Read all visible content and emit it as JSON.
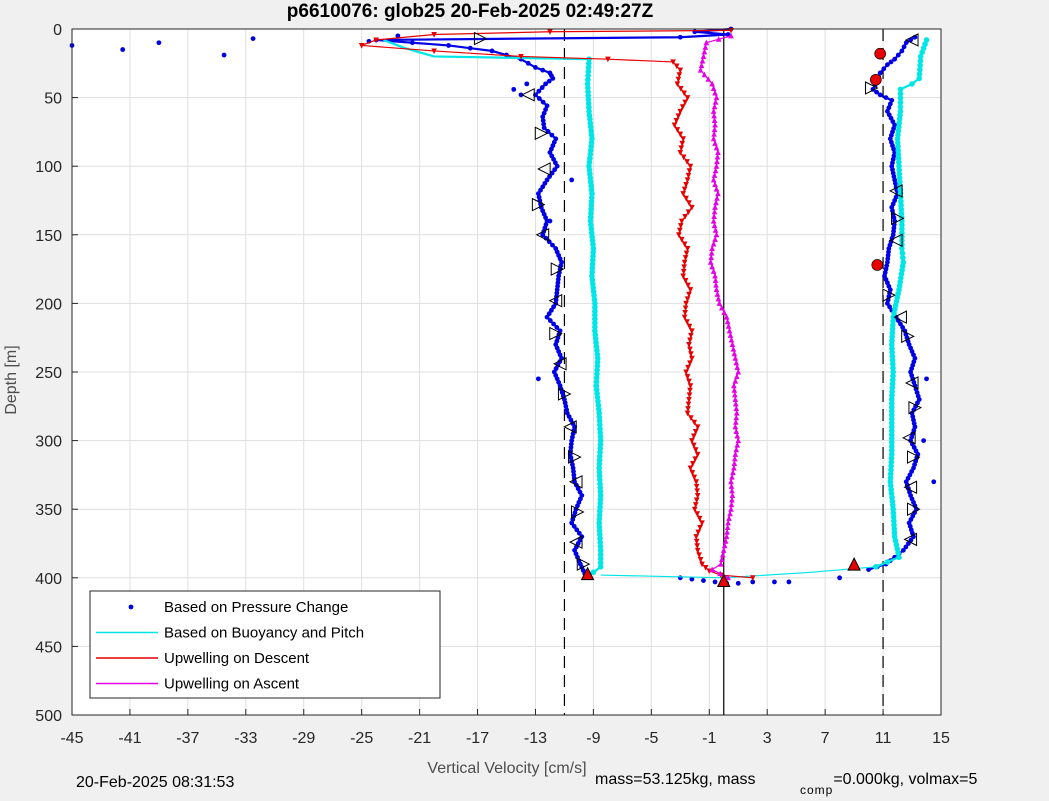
{
  "chart_data": {
    "type": "scatter",
    "title": "p6610076: glob25 20-Feb-2025 02:49:27Z",
    "xlabel": "Vertical Velocity [cm/s]",
    "ylabel": "Depth [m]",
    "xlim": [
      -45,
      15
    ],
    "ylim": [
      0,
      500
    ],
    "y_reversed": true,
    "grid": true,
    "x_ticks": [
      -45,
      -41,
      -37,
      -33,
      -29,
      -25,
      -21,
      -17,
      -13,
      -9,
      -5,
      -1,
      3,
      7,
      11,
      15
    ],
    "y_ticks": [
      0,
      50,
      100,
      150,
      200,
      250,
      300,
      350,
      400,
      450,
      500
    ],
    "legend_position": "bottom-left",
    "reference_lines": [
      {
        "x": -11,
        "style": "dashed",
        "color": "#000000"
      },
      {
        "x": 11,
        "style": "dashed",
        "color": "#000000"
      },
      {
        "x": 0,
        "style": "solid",
        "color": "#000000"
      }
    ],
    "series": [
      {
        "name": "Based on Pressure Change",
        "color": "#0000e6",
        "style": "dots",
        "descent": [
          [
            0.5,
            0
          ],
          [
            -2,
            2
          ],
          [
            0.3,
            4
          ],
          [
            -3,
            6
          ],
          [
            -24,
            8
          ],
          [
            -19,
            12
          ],
          [
            -16,
            16
          ],
          [
            -14,
            22
          ],
          [
            -13,
            28
          ],
          [
            -12,
            32
          ],
          [
            -11.8,
            36
          ],
          [
            -12.3,
            40
          ],
          [
            -13,
            48
          ],
          [
            -12.2,
            56
          ],
          [
            -12.5,
            64
          ],
          [
            -12.4,
            72
          ],
          [
            -11.6,
            80
          ],
          [
            -12,
            90
          ],
          [
            -11.5,
            100
          ],
          [
            -12.2,
            110
          ],
          [
            -12.8,
            120
          ],
          [
            -12.6,
            130
          ],
          [
            -12.2,
            140
          ],
          [
            -12.5,
            150
          ],
          [
            -11.6,
            160
          ],
          [
            -11.2,
            170
          ],
          [
            -11.4,
            180
          ],
          [
            -11.5,
            190
          ],
          [
            -11.6,
            200
          ],
          [
            -12.2,
            210
          ],
          [
            -11.3,
            220
          ],
          [
            -11.6,
            230
          ],
          [
            -11.2,
            240
          ],
          [
            -11.7,
            250
          ],
          [
            -11.3,
            260
          ],
          [
            -11,
            270
          ],
          [
            -10.8,
            280
          ],
          [
            -10.3,
            290
          ],
          [
            -10.5,
            300
          ],
          [
            -10.6,
            310
          ],
          [
            -10.4,
            320
          ],
          [
            -10.3,
            330
          ],
          [
            -9.8,
            340
          ],
          [
            -10.2,
            350
          ],
          [
            -10.5,
            360
          ],
          [
            -9.8,
            370
          ],
          [
            -10.3,
            380
          ],
          [
            -9.9,
            390
          ],
          [
            -9.6,
            397
          ]
        ],
        "ascent": [
          [
            13.2,
            6
          ],
          [
            12.6,
            10
          ],
          [
            12.3,
            16
          ],
          [
            11.8,
            22
          ],
          [
            11.3,
            26
          ],
          [
            10.8,
            32
          ],
          [
            10.6,
            38
          ],
          [
            10.3,
            44
          ],
          [
            10.8,
            48
          ],
          [
            11.6,
            52
          ],
          [
            11.3,
            60
          ],
          [
            11.8,
            70
          ],
          [
            11.5,
            80
          ],
          [
            11.8,
            90
          ],
          [
            11.6,
            100
          ],
          [
            11.8,
            110
          ],
          [
            12,
            120
          ],
          [
            11.6,
            130
          ],
          [
            11.8,
            140
          ],
          [
            11.7,
            150
          ],
          [
            11.4,
            160
          ],
          [
            11.3,
            170
          ],
          [
            11.1,
            180
          ],
          [
            11.5,
            190
          ],
          [
            11.3,
            200
          ],
          [
            11.9,
            210
          ],
          [
            12.5,
            220
          ],
          [
            12.8,
            230
          ],
          [
            13.2,
            240
          ],
          [
            12.9,
            250
          ],
          [
            13.2,
            260
          ],
          [
            13.5,
            270
          ],
          [
            13,
            280
          ],
          [
            13.2,
            290
          ],
          [
            12.9,
            300
          ],
          [
            13.4,
            310
          ],
          [
            13.1,
            320
          ],
          [
            12.6,
            330
          ],
          [
            12.9,
            340
          ],
          [
            13.3,
            350
          ],
          [
            12.8,
            360
          ],
          [
            13.1,
            370
          ],
          [
            12.4,
            380
          ],
          [
            11.2,
            390
          ],
          [
            10,
            394
          ]
        ],
        "bottom": [
          [
            -3,
            400
          ],
          [
            -2.2,
            401
          ],
          [
            -1.4,
            402
          ],
          [
            -0.6,
            403
          ],
          [
            0.2,
            404
          ],
          [
            1,
            404
          ],
          [
            2,
            403
          ],
          [
            3.5,
            403
          ],
          [
            4.5,
            403
          ]
        ],
        "scatter": [
          [
            -45,
            12
          ],
          [
            -41.5,
            15
          ],
          [
            -39,
            10
          ],
          [
            -34.5,
            19
          ],
          [
            -32.5,
            7
          ],
          [
            -24.5,
            9
          ],
          [
            -22.5,
            5
          ],
          [
            -14,
            48
          ],
          [
            -13.6,
            40
          ],
          [
            -14.5,
            44
          ],
          [
            -12,
            140
          ],
          [
            -10.5,
            110
          ],
          [
            -12.8,
            255
          ],
          [
            14.5,
            330
          ],
          [
            14,
            255
          ],
          [
            13.8,
            300
          ],
          [
            8,
            400
          ]
        ]
      },
      {
        "name": "Based on Buoyancy and Pitch",
        "color": "#00e6e6",
        "style": "line-dots",
        "descent": [
          [
            -23.5,
            8
          ],
          [
            -22,
            14
          ],
          [
            -20,
            20
          ],
          [
            -9.3,
            22
          ],
          [
            -9.4,
            40
          ],
          [
            -9.3,
            60
          ],
          [
            -9.1,
            80
          ],
          [
            -9.3,
            100
          ],
          [
            -9.1,
            120
          ],
          [
            -9.2,
            140
          ],
          [
            -9,
            160
          ],
          [
            -9.1,
            180
          ],
          [
            -8.9,
            200
          ],
          [
            -8.9,
            220
          ],
          [
            -8.7,
            240
          ],
          [
            -8.8,
            260
          ],
          [
            -8.6,
            280
          ],
          [
            -8.5,
            300
          ],
          [
            -8.6,
            320
          ],
          [
            -8.5,
            340
          ],
          [
            -8.6,
            360
          ],
          [
            -8.5,
            380
          ],
          [
            -8.5,
            392
          ],
          [
            -9,
            396
          ]
        ],
        "ascent": [
          [
            14,
            8
          ],
          [
            13.6,
            20
          ],
          [
            13.5,
            36
          ],
          [
            13,
            40
          ],
          [
            12.2,
            44
          ],
          [
            12.2,
            60
          ],
          [
            12,
            80
          ],
          [
            12.1,
            100
          ],
          [
            12.2,
            120
          ],
          [
            12.3,
            140
          ],
          [
            12.3,
            160
          ],
          [
            12.4,
            170
          ],
          [
            12.1,
            190
          ],
          [
            11.7,
            210
          ],
          [
            11.6,
            230
          ],
          [
            11.7,
            250
          ],
          [
            11.6,
            270
          ],
          [
            11.6,
            290
          ],
          [
            11.6,
            310
          ],
          [
            11.5,
            330
          ],
          [
            11.7,
            350
          ],
          [
            11.8,
            370
          ],
          [
            12.1,
            385
          ],
          [
            10.5,
            392
          ]
        ],
        "bottom": [
          [
            -8.5,
            398
          ],
          [
            0,
            400
          ],
          [
            6,
            396
          ],
          [
            10.5,
            392
          ]
        ]
      },
      {
        "name": "Upwelling on Descent",
        "color": "#e60000",
        "style": "line-triangles",
        "points": [
          [
            0.5,
            1
          ],
          [
            -12,
            2
          ],
          [
            -20,
            4
          ],
          [
            -24,
            8
          ],
          [
            -25,
            12
          ],
          [
            -20,
            16
          ],
          [
            -14,
            20
          ],
          [
            -8,
            22
          ],
          [
            -3.5,
            24
          ],
          [
            -3,
            30
          ],
          [
            -3.2,
            40
          ],
          [
            -2.5,
            50
          ],
          [
            -3,
            60
          ],
          [
            -3.4,
            70
          ],
          [
            -2.8,
            80
          ],
          [
            -3,
            90
          ],
          [
            -2.3,
            100
          ],
          [
            -2.5,
            110
          ],
          [
            -2.8,
            120
          ],
          [
            -2.2,
            130
          ],
          [
            -2.9,
            140
          ],
          [
            -3.1,
            150
          ],
          [
            -2.5,
            160
          ],
          [
            -2.7,
            170
          ],
          [
            -2.8,
            180
          ],
          [
            -2.3,
            190
          ],
          [
            -2.6,
            200
          ],
          [
            -2.7,
            210
          ],
          [
            -2.2,
            220
          ],
          [
            -2.4,
            230
          ],
          [
            -2.2,
            240
          ],
          [
            -2.6,
            250
          ],
          [
            -2.3,
            260
          ],
          [
            -2.4,
            270
          ],
          [
            -2.5,
            280
          ],
          [
            -1.8,
            290
          ],
          [
            -2.2,
            300
          ],
          [
            -1.8,
            310
          ],
          [
            -2.3,
            320
          ],
          [
            -1.9,
            330
          ],
          [
            -1.8,
            340
          ],
          [
            -2,
            350
          ],
          [
            -1.5,
            360
          ],
          [
            -1.9,
            370
          ],
          [
            -1.8,
            380
          ],
          [
            -1.5,
            390
          ],
          [
            -1,
            395
          ],
          [
            -0.2,
            398
          ],
          [
            2,
            400
          ]
        ]
      },
      {
        "name": "Upwelling on Ascent",
        "color": "#e600e6",
        "style": "line-triangles",
        "points": [
          [
            0.5,
            5
          ],
          [
            -1.2,
            10
          ],
          [
            -1.4,
            20
          ],
          [
            -1.6,
            30
          ],
          [
            -0.8,
            40
          ],
          [
            -0.5,
            50
          ],
          [
            -0.7,
            60
          ],
          [
            -0.6,
            70
          ],
          [
            -0.7,
            80
          ],
          [
            -0.4,
            90
          ],
          [
            -0.5,
            100
          ],
          [
            -0.7,
            110
          ],
          [
            -0.4,
            120
          ],
          [
            -0.6,
            130
          ],
          [
            -0.7,
            140
          ],
          [
            -0.5,
            150
          ],
          [
            -0.8,
            160
          ],
          [
            -0.9,
            170
          ],
          [
            -0.6,
            180
          ],
          [
            -0.5,
            190
          ],
          [
            -0.3,
            200
          ],
          [
            0.2,
            210
          ],
          [
            0.4,
            220
          ],
          [
            0.6,
            230
          ],
          [
            0.8,
            240
          ],
          [
            1,
            250
          ],
          [
            0.7,
            260
          ],
          [
            0.8,
            270
          ],
          [
            0.9,
            280
          ],
          [
            0.8,
            290
          ],
          [
            1,
            300
          ],
          [
            0.8,
            310
          ],
          [
            0.7,
            320
          ],
          [
            0.5,
            330
          ],
          [
            0.6,
            340
          ],
          [
            0.5,
            350
          ],
          [
            0.3,
            360
          ],
          [
            0.2,
            370
          ],
          [
            0,
            380
          ],
          [
            -0.2,
            390
          ],
          [
            -0.8,
            394
          ],
          [
            0.3,
            400
          ]
        ]
      }
    ],
    "markers": {
      "open_triangles": [
        [
          -16.8,
          7
        ],
        [
          -13.5,
          48
        ],
        [
          -12.6,
          76
        ],
        [
          -12.4,
          102
        ],
        [
          -12.8,
          128
        ],
        [
          -12.5,
          150
        ],
        [
          -11.5,
          175
        ],
        [
          -11.6,
          198
        ],
        [
          -11.6,
          222
        ],
        [
          -11.3,
          244
        ],
        [
          -11,
          266
        ],
        [
          -10.6,
          290
        ],
        [
          -10.3,
          312
        ],
        [
          -10.2,
          330
        ],
        [
          -10.1,
          352
        ],
        [
          -10.2,
          374
        ],
        [
          -9.7,
          390
        ],
        [
          13,
          8
        ],
        [
          10.2,
          43
        ],
        [
          11.9,
          118
        ],
        [
          12,
          138
        ],
        [
          11.9,
          154
        ],
        [
          11.4,
          194
        ],
        [
          12.2,
          210
        ],
        [
          12.7,
          224
        ],
        [
          13,
          258
        ],
        [
          13.2,
          276
        ],
        [
          12.8,
          298
        ],
        [
          13.1,
          312
        ],
        [
          12.9,
          334
        ],
        [
          13.1,
          350
        ],
        [
          12.9,
          372
        ]
      ],
      "red_circles": [
        [
          10.8,
          18
        ],
        [
          10.5,
          37
        ],
        [
          10.6,
          172
        ]
      ],
      "red_triangles": [
        [
          -9.4,
          397
        ],
        [
          0,
          402
        ],
        [
          9,
          390
        ]
      ]
    }
  },
  "footer": {
    "timestamp": "20-Feb-2025 08:31:53",
    "mass_text": "mass=53.125kg, mass",
    "comp_sub": "comp",
    "volmax_text": "=0.000kg, volmax=5"
  }
}
